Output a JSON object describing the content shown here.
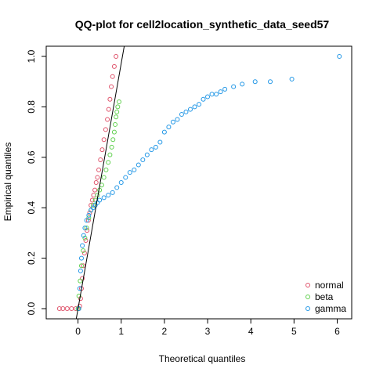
{
  "chart_data": {
    "type": "scatter",
    "title": "QQ-plot for cell2location_synthetic_data_seed57",
    "xlabel": "Theoretical quantiles",
    "ylabel": "Empirical quantiles",
    "xlim": [
      -0.5,
      6.1
    ],
    "ylim": [
      0.0,
      1.0
    ],
    "xticks": [
      "0",
      "1",
      "2",
      "3",
      "4",
      "5",
      "6"
    ],
    "yticks": [
      "0.0",
      "0.2",
      "0.4",
      "0.6",
      "0.8",
      "1.0"
    ],
    "legend_position": "bottom-right",
    "reference_line": {
      "from": [
        0,
        0
      ],
      "to": [
        1,
        1
      ],
      "color": "#000000"
    },
    "series": [
      {
        "name": "normal",
        "color": "#DF536B",
        "x": [
          -0.43,
          -0.35,
          -0.25,
          -0.15,
          -0.05,
          0.02,
          0.04,
          0.06,
          0.08,
          0.1,
          0.12,
          0.15,
          0.18,
          0.21,
          0.24,
          0.27,
          0.3,
          0.33,
          0.36,
          0.39,
          0.42,
          0.45,
          0.48,
          0.52,
          0.56,
          0.6,
          0.64,
          0.68,
          0.71,
          0.74,
          0.77,
          0.8,
          0.84,
          0.88
        ],
        "y": [
          0.0,
          0.0,
          0.0,
          0.0,
          0.0,
          0.0,
          0.01,
          0.04,
          0.08,
          0.12,
          0.17,
          0.22,
          0.27,
          0.31,
          0.35,
          0.38,
          0.41,
          0.43,
          0.45,
          0.47,
          0.5,
          0.52,
          0.55,
          0.59,
          0.63,
          0.67,
          0.71,
          0.75,
          0.79,
          0.83,
          0.88,
          0.92,
          0.96,
          1.0
        ]
      },
      {
        "name": "beta",
        "color": "#61D04F",
        "x": [
          0.0,
          0.02,
          0.05,
          0.08,
          0.12,
          0.16,
          0.2,
          0.25,
          0.3,
          0.35,
          0.4,
          0.45,
          0.5,
          0.55,
          0.6,
          0.65,
          0.7,
          0.74,
          0.78,
          0.81,
          0.84,
          0.86,
          0.88,
          0.9,
          0.92,
          0.95
        ],
        "y": [
          0.0,
          0.05,
          0.11,
          0.17,
          0.23,
          0.28,
          0.32,
          0.36,
          0.39,
          0.41,
          0.43,
          0.45,
          0.47,
          0.49,
          0.52,
          0.55,
          0.58,
          0.61,
          0.64,
          0.67,
          0.7,
          0.73,
          0.76,
          0.78,
          0.8,
          0.82
        ]
      },
      {
        "name": "gamma",
        "color": "#2297E6",
        "x": [
          0.02,
          0.04,
          0.06,
          0.08,
          0.1,
          0.13,
          0.16,
          0.2,
          0.25,
          0.3,
          0.35,
          0.4,
          0.45,
          0.5,
          0.6,
          0.7,
          0.8,
          0.9,
          1.0,
          1.1,
          1.2,
          1.3,
          1.4,
          1.5,
          1.6,
          1.7,
          1.8,
          1.9,
          2.0,
          2.1,
          2.2,
          2.3,
          2.4,
          2.5,
          2.6,
          2.7,
          2.8,
          2.9,
          3.0,
          3.1,
          3.2,
          3.3,
          3.4,
          3.6,
          3.8,
          4.1,
          4.45,
          4.95,
          6.05
        ],
        "y": [
          0.0,
          0.08,
          0.15,
          0.2,
          0.25,
          0.29,
          0.32,
          0.35,
          0.37,
          0.39,
          0.4,
          0.41,
          0.42,
          0.43,
          0.44,
          0.45,
          0.46,
          0.48,
          0.5,
          0.52,
          0.54,
          0.55,
          0.57,
          0.59,
          0.61,
          0.63,
          0.64,
          0.66,
          0.7,
          0.72,
          0.74,
          0.75,
          0.77,
          0.78,
          0.79,
          0.8,
          0.81,
          0.83,
          0.84,
          0.85,
          0.85,
          0.86,
          0.87,
          0.88,
          0.89,
          0.9,
          0.9,
          0.91,
          1.0
        ]
      }
    ]
  }
}
